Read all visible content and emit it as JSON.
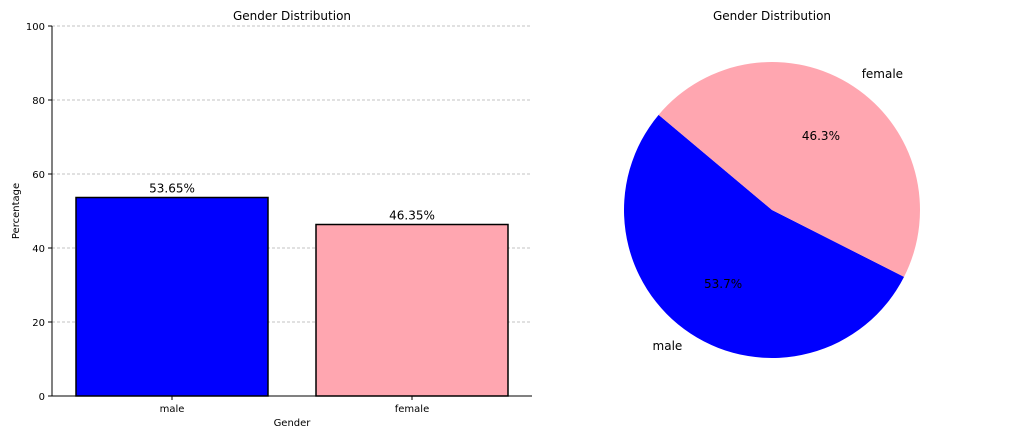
{
  "chart_data": [
    {
      "type": "bar",
      "title": "Gender Distribution",
      "xlabel": "Gender",
      "ylabel": "Percentage",
      "categories": [
        "male",
        "female"
      ],
      "values": [
        53.65,
        46.35
      ],
      "data_labels": [
        "53.65%",
        "46.35%"
      ],
      "colors": [
        "#0000ff",
        "#ffa6b0"
      ],
      "ylim": [
        0,
        100
      ],
      "yticks": [
        0,
        20,
        40,
        60,
        80,
        100
      ],
      "grid": "y-dashed"
    },
    {
      "type": "pie",
      "title": "Gender Distribution",
      "labels": [
        "male",
        "female"
      ],
      "values": [
        53.65,
        46.35
      ],
      "pct_labels": [
        "53.7%",
        "46.3%"
      ],
      "colors": [
        "#0000ff",
        "#ffa6b0"
      ],
      "start_angle": 140
    }
  ]
}
